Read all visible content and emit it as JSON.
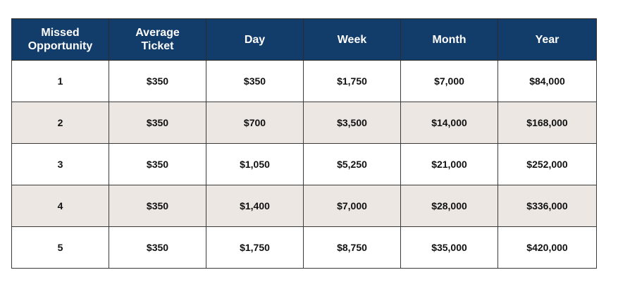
{
  "table": {
    "header": {
      "missed_opportunity": [
        "Missed",
        "Opportunity"
      ],
      "average_ticket": [
        "Average",
        "Ticket"
      ],
      "day": "Day",
      "week": "Week",
      "month": "Month",
      "year": "Year"
    },
    "rows": [
      {
        "missed": "1",
        "ticket": "$350",
        "day": "$350",
        "week": "$1,750",
        "month": "$7,000",
        "year": "$84,000"
      },
      {
        "missed": "2",
        "ticket": "$350",
        "day": "$700",
        "week": "$3,500",
        "month": "$14,000",
        "year": "$168,000"
      },
      {
        "missed": "3",
        "ticket": "$350",
        "day": "$1,050",
        "week": "$5,250",
        "month": "$21,000",
        "year": "$252,000"
      },
      {
        "missed": "4",
        "ticket": "$350",
        "day": "$1,400",
        "week": "$7,000",
        "month": "$28,000",
        "year": "$336,000"
      },
      {
        "missed": "5",
        "ticket": "$350",
        "day": "$1,750",
        "week": "$8,750",
        "month": "$35,000",
        "year": "$420,000"
      }
    ],
    "colors": {
      "header_bg": "#123d6a",
      "header_text": "#ffffff",
      "stripe_bg": "#ece7e3"
    }
  }
}
